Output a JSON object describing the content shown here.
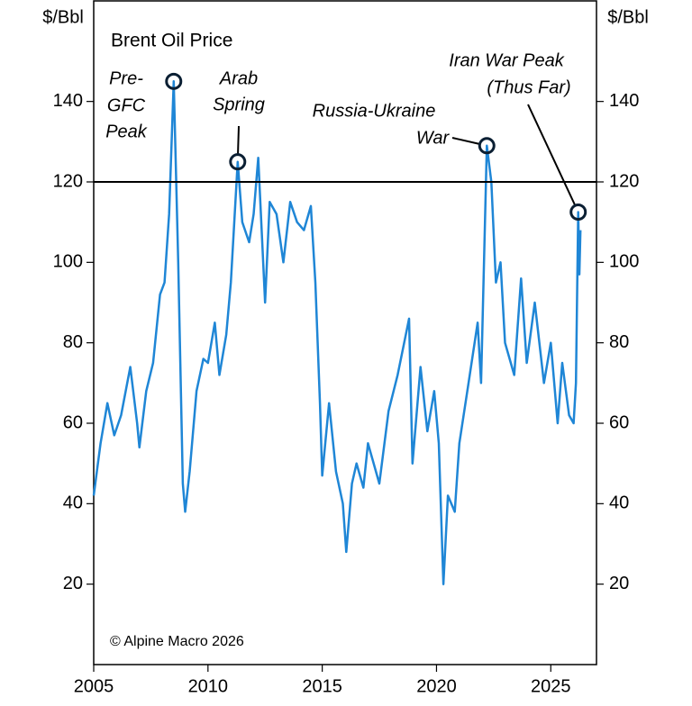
{
  "chart_data": {
    "type": "line",
    "title": "Brent Oil Price",
    "y_label": "$/Bbl",
    "y2_label": "$/Bbl",
    "source": "© Alpine Macro 2026",
    "color": "#1f86d6",
    "x": [
      2005.0,
      2005.3,
      2005.6,
      2005.9,
      2006.2,
      2006.6,
      2006.9,
      2007.0,
      2007.3,
      2007.6,
      2007.9,
      2008.1,
      2008.3,
      2008.5,
      2008.7,
      2008.9,
      2009.0,
      2009.2,
      2009.5,
      2009.8,
      2010.0,
      2010.3,
      2010.5,
      2010.8,
      2011.0,
      2011.3,
      2011.5,
      2011.8,
      2012.0,
      2012.2,
      2012.5,
      2012.7,
      2013.0,
      2013.3,
      2013.6,
      2013.9,
      2014.2,
      2014.5,
      2014.7,
      2014.9,
      2015.0,
      2015.3,
      2015.6,
      2015.9,
      2016.05,
      2016.3,
      2016.5,
      2016.8,
      2017.0,
      2017.5,
      2017.9,
      2018.3,
      2018.8,
      2018.95,
      2019.3,
      2019.6,
      2019.9,
      2020.1,
      2020.3,
      2020.5,
      2020.8,
      2021.0,
      2021.4,
      2021.8,
      2021.95,
      2022.2,
      2022.4,
      2022.6,
      2022.8,
      2023.0,
      2023.4,
      2023.7,
      2023.95,
      2024.3,
      2024.7,
      2025.0,
      2025.3,
      2025.5,
      2025.8,
      2026.0,
      2026.1,
      2026.2,
      2026.25,
      2026.3
    ],
    "values": [
      42,
      55,
      65,
      57,
      62,
      74,
      60,
      54,
      68,
      75,
      92,
      95,
      112,
      145,
      100,
      45,
      38,
      48,
      68,
      76,
      75,
      85,
      72,
      82,
      95,
      125,
      110,
      105,
      112,
      126,
      90,
      115,
      112,
      100,
      115,
      110,
      108,
      114,
      95,
      65,
      47,
      65,
      48,
      40,
      28,
      45,
      50,
      44,
      55,
      45,
      63,
      72,
      86,
      50,
      74,
      58,
      68,
      55,
      20,
      42,
      38,
      55,
      70,
      85,
      70,
      129,
      120,
      95,
      100,
      80,
      72,
      96,
      75,
      90,
      70,
      80,
      60,
      75,
      62,
      60,
      70,
      112.5,
      97,
      108
    ],
    "xlim": [
      2005,
      2027
    ],
    "xticks": [
      2005,
      2010,
      2015,
      2020,
      2025
    ],
    "ylim": [
      0,
      165
    ],
    "yticks": [
      20,
      40,
      60,
      80,
      100,
      120,
      140
    ],
    "reference_lines": [
      120
    ],
    "annotations": [
      {
        "lines": [
          "Pre-",
          "GFC",
          "Peak"
        ],
        "x": 2008.5,
        "y": 145
      },
      {
        "lines": [
          "Arab",
          "Spring"
        ],
        "x": 2011.3,
        "y": 125
      },
      {
        "lines": [
          "Russia-Ukraine",
          "War"
        ],
        "x": 2022.2,
        "y": 129
      },
      {
        "lines": [
          "Iran War Peak",
          "(Thus Far)"
        ],
        "x": 2026.2,
        "y": 112.5
      }
    ]
  }
}
